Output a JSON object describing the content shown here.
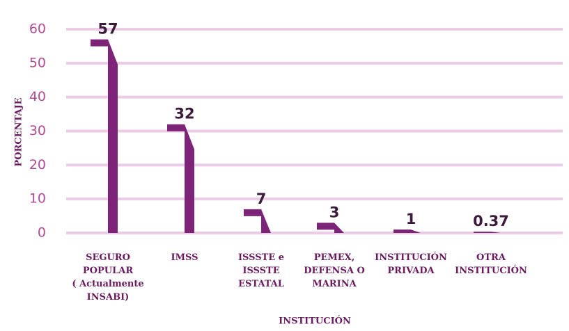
{
  "chart_data": {
    "type": "bar",
    "categories": [
      "SEGURO\nPOPULAR\n( Actualmente\nINSABI)",
      "IMSS",
      "ISSSTE e\nISSSTE\nESTATAL",
      "PEMEX,\nDEFENSA O\nMARINA",
      "INSTITUCIÓN\nPRIVADA",
      "OTRA\nINSTITUCIÓN"
    ],
    "values": [
      57,
      32,
      7,
      3,
      1,
      0.37
    ],
    "color": "#7d2378",
    "ylim": [
      0,
      60
    ],
    "yticks": [
      0,
      10,
      20,
      30,
      40,
      50,
      60
    ],
    "grid": true,
    "ylabel": "PORCENTAJE",
    "xlabel": "INSTITUCIÓN"
  }
}
